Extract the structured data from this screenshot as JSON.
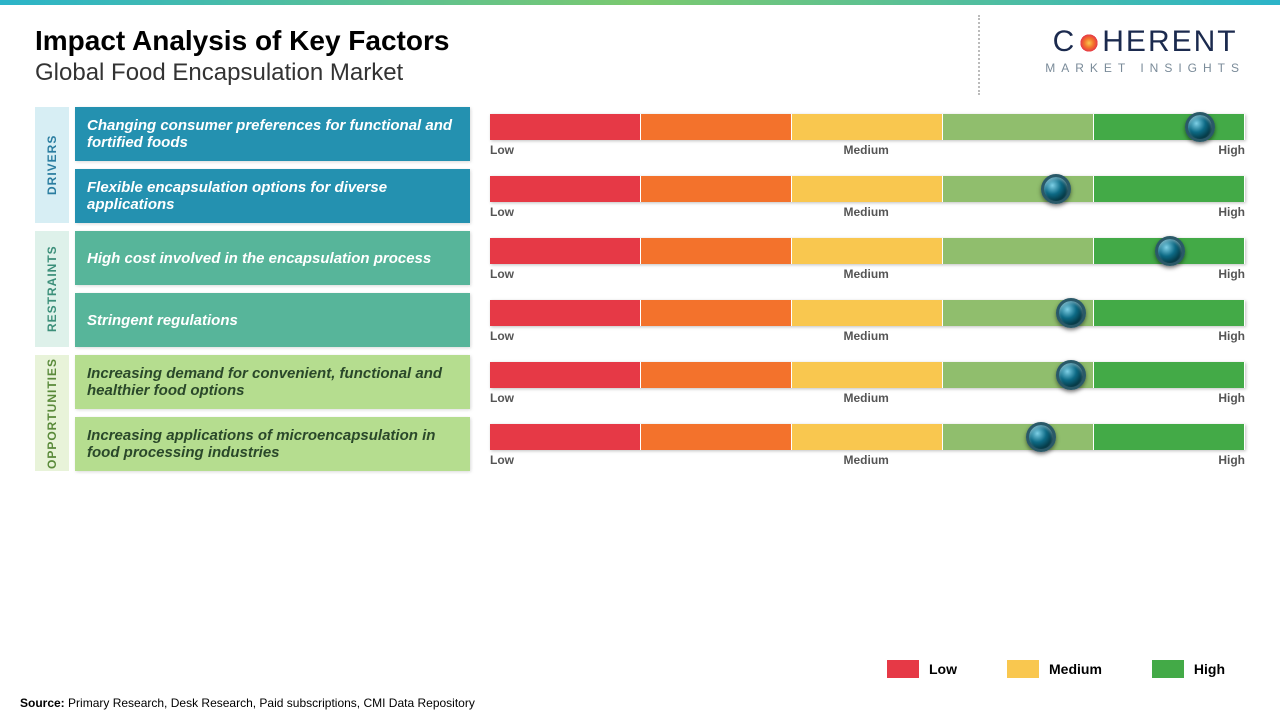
{
  "header": {
    "title": "Impact Analysis of Key Factors",
    "subtitle": "Global Food Encapsulation Market",
    "logo_main_left": "C",
    "logo_main_right": "HERENT",
    "logo_sub": "MARKET INSIGHTS"
  },
  "scale": {
    "low": "Low",
    "medium": "Medium",
    "high": "High",
    "segment_colors": [
      "#e63946",
      "#f3722c",
      "#f9c74f",
      "#90be6d",
      "#43aa47"
    ]
  },
  "groups": [
    {
      "name": "DRIVERS",
      "label_bg": "#d7eef4",
      "label_color": "#2a7da0",
      "factor_bg": "#2491b0",
      "factor_color": "#ffffff",
      "items": [
        {
          "label": "Changing consumer preferences for functional and fortified foods",
          "marker_pct": 94
        },
        {
          "label": "Flexible encapsulation options for diverse applications",
          "marker_pct": 75
        }
      ]
    },
    {
      "name": "RESTRAINTS",
      "label_bg": "#def1ea",
      "label_color": "#3c8f7a",
      "factor_bg": "#57b59a",
      "factor_color": "#ffffff",
      "items": [
        {
          "label": "High cost involved in the encapsulation process",
          "marker_pct": 90
        },
        {
          "label": "Stringent regulations",
          "marker_pct": 77
        }
      ]
    },
    {
      "name": "OPPORTUNITIES",
      "label_bg": "#e8f3d9",
      "label_color": "#5a8a3a",
      "factor_bg": "#b5dd8f",
      "factor_color": "#2a482a",
      "items": [
        {
          "label": "Increasing demand for convenient, functional and healthier food options",
          "marker_pct": 77
        },
        {
          "label": "Increasing applications of microencapsulation in food processing industries",
          "marker_pct": 73
        }
      ]
    }
  ],
  "legend": {
    "low": {
      "label": "Low",
      "color": "#e63946"
    },
    "medium": {
      "label": "Medium",
      "color": "#f9c74f"
    },
    "high": {
      "label": "High",
      "color": "#43aa47"
    }
  },
  "source": {
    "prefix": "Source:",
    "text": "Primary Research, Desk Research, Paid subscriptions, CMI Data Repository"
  }
}
